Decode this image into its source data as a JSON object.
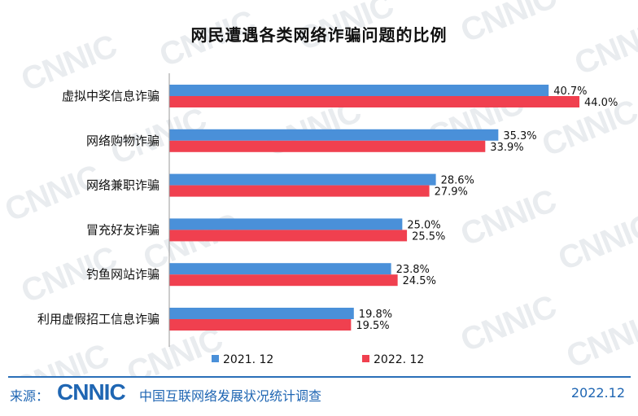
{
  "watermark": "CNNIC",
  "chart_data": {
    "type": "bar",
    "orientation": "horizontal",
    "title": "网民遭遇各类网络诈骗问题的比例",
    "categories": [
      "虚拟中奖信息诈骗",
      "网络购物诈骗",
      "网络兼职诈骗",
      "冒充好友诈骗",
      "钓鱼网站诈骗",
      "利用虚假招工信息诈骗"
    ],
    "series": [
      {
        "name": "2021. 12",
        "color": "#4a90d9",
        "values": [
          40.7,
          35.3,
          28.6,
          25.0,
          23.8,
          19.8
        ],
        "labels": [
          "40.7%",
          "35.3%",
          "28.6%",
          "25.0%",
          "23.8%",
          "19.8%"
        ]
      },
      {
        "name": "2022. 12",
        "color": "#f0404f",
        "values": [
          44.0,
          33.9,
          27.9,
          25.5,
          24.5,
          19.5
        ],
        "labels": [
          "44.0%",
          "33.9%",
          "27.9%",
          "25.5%",
          "24.5%",
          "19.5%"
        ]
      }
    ],
    "xlim": [
      0,
      44.0
    ],
    "grid": false,
    "legend_position": "bottom"
  },
  "footer": {
    "source_label": "来源：",
    "logo_text": "CNNIC",
    "source_org": "中国互联网络发展状况统计调查",
    "date": "2022.12"
  }
}
